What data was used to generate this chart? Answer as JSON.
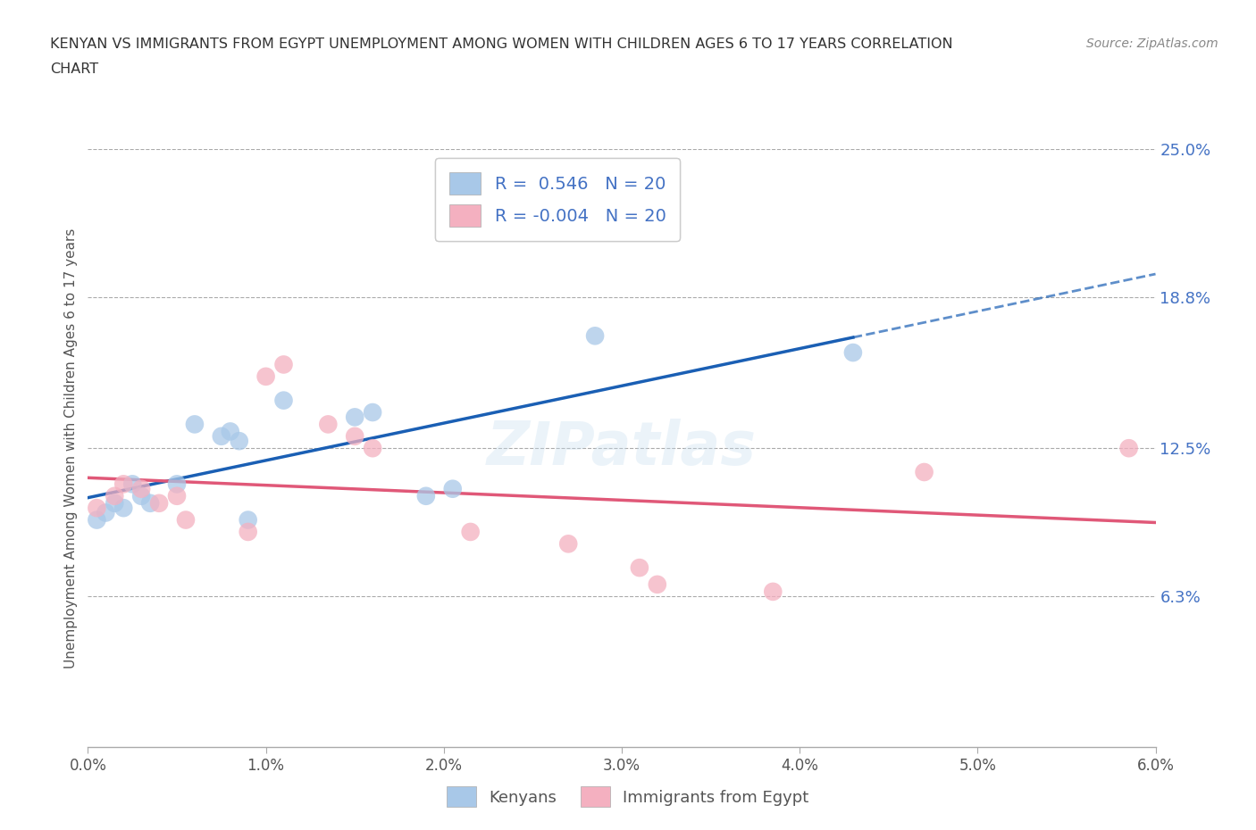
{
  "title_line1": "KENYAN VS IMMIGRANTS FROM EGYPT UNEMPLOYMENT AMONG WOMEN WITH CHILDREN AGES 6 TO 17 YEARS CORRELATION",
  "title_line2": "CHART",
  "source": "Source: ZipAtlas.com",
  "ylabel_label": "Unemployment Among Women with Children Ages 6 to 17 years",
  "xlim": [
    0.0,
    6.0
  ],
  "ylim": [
    0.0,
    25.0
  ],
  "kenyan_color": "#a8c8e8",
  "egypt_color": "#f4b0c0",
  "kenyan_line_color": "#1a5fb4",
  "egypt_line_color": "#e05878",
  "watermark": "ZIPatlas",
  "kenyan_points": [
    [
      0.05,
      9.5
    ],
    [
      0.1,
      9.8
    ],
    [
      0.15,
      10.2
    ],
    [
      0.2,
      10.0
    ],
    [
      0.25,
      11.0
    ],
    [
      0.3,
      10.5
    ],
    [
      0.35,
      10.2
    ],
    [
      0.5,
      11.0
    ],
    [
      0.6,
      13.5
    ],
    [
      0.75,
      13.0
    ],
    [
      0.8,
      13.2
    ],
    [
      0.85,
      12.8
    ],
    [
      0.9,
      9.5
    ],
    [
      1.1,
      14.5
    ],
    [
      1.5,
      13.8
    ],
    [
      1.6,
      14.0
    ],
    [
      1.9,
      10.5
    ],
    [
      2.05,
      10.8
    ],
    [
      2.85,
      17.2
    ],
    [
      4.3,
      16.5
    ]
  ],
  "egypt_points": [
    [
      0.05,
      10.0
    ],
    [
      0.15,
      10.5
    ],
    [
      0.2,
      11.0
    ],
    [
      0.3,
      10.8
    ],
    [
      0.4,
      10.2
    ],
    [
      0.5,
      10.5
    ],
    [
      0.55,
      9.5
    ],
    [
      0.9,
      9.0
    ],
    [
      1.0,
      15.5
    ],
    [
      1.1,
      16.0
    ],
    [
      1.35,
      13.5
    ],
    [
      1.5,
      13.0
    ],
    [
      1.6,
      12.5
    ],
    [
      2.15,
      9.0
    ],
    [
      2.7,
      8.5
    ],
    [
      3.1,
      7.5
    ],
    [
      3.2,
      6.8
    ],
    [
      3.85,
      6.5
    ],
    [
      4.7,
      11.5
    ],
    [
      5.85,
      12.5
    ]
  ],
  "kenyan_R": 0.546,
  "egypt_R": -0.004,
  "N": 20,
  "background_color": "#ffffff",
  "grid_color": "#cccccc"
}
